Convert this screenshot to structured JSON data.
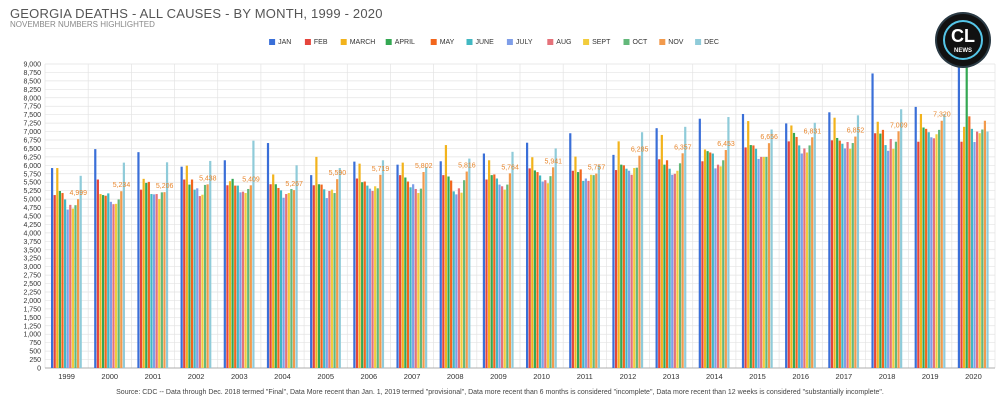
{
  "chart_data": {
    "type": "bar",
    "title": "GEORGIA DEATHS - ALL CAUSES - BY MONTH, 1999 - 2020",
    "subtitle": "NOVEMBER NUMBERS HIGHLIGHTED",
    "xlabel": "",
    "ylabel": "",
    "ylim": [
      0,
      9000
    ],
    "ytick_step": 250,
    "grid": true,
    "legend_position": "top-center",
    "categories": [
      "1999",
      "2000",
      "2001",
      "2002",
      "2003",
      "2004",
      "2005",
      "2006",
      "2007",
      "2008",
      "2009",
      "2010",
      "2011",
      "2012",
      "2013",
      "2014",
      "2015",
      "2016",
      "2017",
      "2018",
      "2019",
      "2020"
    ],
    "series": [
      {
        "name": "JAN",
        "color": "#3a6fd8",
        "values": [
          5920,
          6480,
          6390,
          5960,
          6150,
          6660,
          5710,
          6110,
          6020,
          6120,
          6350,
          6670,
          6950,
          6310,
          7100,
          7380,
          7520,
          7240,
          7570,
          8720,
          7730,
          8900
        ]
      },
      {
        "name": "FEB",
        "color": "#e5453c",
        "values": [
          5120,
          5580,
          5280,
          5580,
          5410,
          5440,
          5410,
          5610,
          5710,
          5710,
          5580,
          5910,
          5840,
          5860,
          6180,
          6120,
          6530,
          6710,
          6740,
          6950,
          6700,
          6700
        ]
      },
      {
        "name": "MARCH",
        "color": "#f2b31c",
        "values": [
          5920,
          5150,
          5600,
          5990,
          5530,
          5730,
          6250,
          6050,
          6080,
          6600,
          6150,
          6240,
          6260,
          6710,
          6900,
          6470,
          7310,
          7180,
          7410,
          7290,
          7520,
          7140
        ]
      },
      {
        "name": "APRIL",
        "color": "#34a853",
        "values": [
          5240,
          5120,
          5480,
          5430,
          5600,
          5440,
          5440,
          5500,
          5640,
          5670,
          5710,
          5850,
          5800,
          6020,
          6020,
          6420,
          6600,
          6960,
          6810,
          6940,
          7120,
          8940
        ]
      },
      {
        "name": "MAY",
        "color": "#f2661c",
        "values": [
          5180,
          5100,
          5510,
          5580,
          5400,
          5330,
          5430,
          5520,
          5520,
          5550,
          5730,
          5800,
          5880,
          6000,
          6150,
          6380,
          6590,
          6840,
          6730,
          7050,
          7080,
          7450
        ]
      },
      {
        "name": "JUNE",
        "color": "#42b8c2",
        "values": [
          4990,
          5170,
          5150,
          5280,
          5400,
          5260,
          5290,
          5400,
          5350,
          5230,
          5610,
          5700,
          5540,
          5900,
          5900,
          6350,
          6490,
          6590,
          6640,
          6600,
          6980,
          7080
        ]
      },
      {
        "name": "JULY",
        "color": "#7f9ee8",
        "values": [
          4690,
          4920,
          5140,
          5320,
          5200,
          5040,
          5030,
          5310,
          5440,
          5140,
          5430,
          5520,
          5610,
          5840,
          5720,
          5910,
          6190,
          6350,
          6500,
          6430,
          6830,
          6690
        ]
      },
      {
        "name": "AUG",
        "color": "#e5727a",
        "values": [
          4830,
          4850,
          5150,
          5090,
          5220,
          5150,
          5240,
          5240,
          5300,
          5320,
          5380,
          5560,
          5540,
          5720,
          5750,
          6020,
          6250,
          6500,
          6690,
          6780,
          6800,
          7000
        ]
      },
      {
        "name": "SEPT",
        "color": "#f2cc3c",
        "values": [
          4720,
          4860,
          5000,
          5130,
          5180,
          5180,
          5280,
          5380,
          5180,
          5190,
          5280,
          5470,
          5720,
          5920,
          5840,
          5970,
          6250,
          6380,
          6490,
          6490,
          6920,
          6950
        ]
      },
      {
        "name": "OCT",
        "color": "#63b87a",
        "values": [
          4820,
          4990,
          5200,
          5420,
          5300,
          5300,
          5180,
          5320,
          5310,
          5560,
          5430,
          5680,
          5710,
          5930,
          6060,
          6150,
          6250,
          6590,
          6660,
          6700,
          7050,
          7060
        ]
      },
      {
        "name": "NOV",
        "color": "#f29a4c",
        "values": [
          4999,
          5234,
          5206,
          5438,
          5409,
          5267,
          5590,
          5719,
          5802,
          5816,
          5764,
          5941,
          5757,
          6285,
          6357,
          6453,
          6656,
          6831,
          6852,
          7009,
          7320,
          7320
        ]
      },
      {
        "name": "DEC",
        "color": "#8fcbd9",
        "values": [
          5690,
          6080,
          6090,
          6130,
          6730,
          6000,
          5920,
          6150,
          5950,
          6200,
          6400,
          6500,
          6020,
          6980,
          7140,
          7430,
          7060,
          7260,
          7480,
          7660,
          7520,
          7000
        ]
      }
    ],
    "highlight_series": "NOV",
    "data_labels": [
      {
        "category": "1999",
        "text": "4,999"
      },
      {
        "category": "2000",
        "text": "5,234"
      },
      {
        "category": "2001",
        "text": "5,206"
      },
      {
        "category": "2002",
        "text": "5,438"
      },
      {
        "category": "2003",
        "text": "5,409"
      },
      {
        "category": "2004",
        "text": "5,267"
      },
      {
        "category": "2005",
        "text": "5,590"
      },
      {
        "category": "2006",
        "text": "5,719"
      },
      {
        "category": "2007",
        "text": "5,802"
      },
      {
        "category": "2008",
        "text": "5,816"
      },
      {
        "category": "2009",
        "text": "5,764"
      },
      {
        "category": "2010",
        "text": "5,941"
      },
      {
        "category": "2011",
        "text": "5,757"
      },
      {
        "category": "2012",
        "text": "6,285"
      },
      {
        "category": "2013",
        "text": "6,357"
      },
      {
        "category": "2014",
        "text": "6,453"
      },
      {
        "category": "2015",
        "text": "6,656"
      },
      {
        "category": "2016",
        "text": "6,831"
      },
      {
        "category": "2017",
        "text": "6,852"
      },
      {
        "category": "2018",
        "text": "7,009"
      },
      {
        "category": "2019",
        "text": "7,320"
      }
    ],
    "footnote": "Source: CDC -- Data through Dec. 2018 termed \"Final\", Data More recent than Jan. 1, 2019 termed \"provisional\", Data more recent than 6 months is considered \"incomplete\", Data more recent than 12 weeks is considered \"substantially incomplete\"."
  },
  "logo": {
    "mark": "CL",
    "text": "NEWS"
  }
}
